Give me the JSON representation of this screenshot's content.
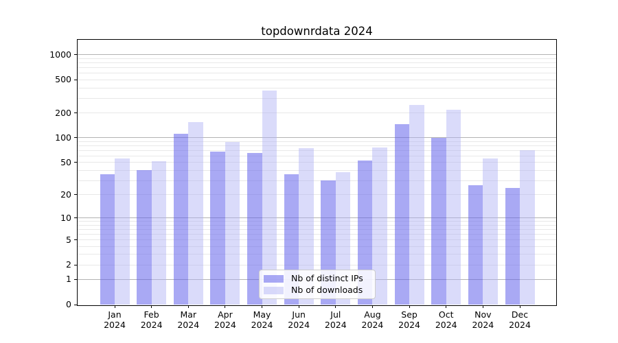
{
  "chart_data": {
    "type": "bar",
    "title": "topdownrdata 2024",
    "year_label": "2024",
    "categories": [
      "Jan",
      "Feb",
      "Mar",
      "Apr",
      "May",
      "Jun",
      "Jul",
      "Aug",
      "Sep",
      "Oct",
      "Nov",
      "Dec"
    ],
    "series": [
      {
        "name": "Nb of distinct IPs",
        "color": "rgba(99,99,235,0.55)",
        "values": [
          36,
          40,
          112,
          68,
          65,
          36,
          30,
          53,
          146,
          100,
          26,
          24
        ]
      },
      {
        "name": "Nb of downloads",
        "color": "rgba(174,176,244,0.45)",
        "values": [
          56,
          52,
          154,
          88,
          370,
          75,
          38,
          76,
          250,
          220,
          56,
          71
        ]
      }
    ],
    "xlabel": "",
    "ylabel": "",
    "y_scale": "log10(1+x)",
    "ylim": [
      0,
      1520
    ],
    "y_ticks": [
      0,
      1,
      2,
      5,
      10,
      20,
      50,
      100,
      200,
      500,
      1000
    ],
    "y_gridlines_major": [
      1,
      10,
      100,
      1000
    ],
    "y_gridlines_minor": [
      2,
      3,
      4,
      5,
      6,
      7,
      8,
      9,
      20,
      30,
      40,
      50,
      60,
      70,
      80,
      90,
      200,
      300,
      400,
      500,
      600,
      700,
      800,
      900
    ],
    "grid": true,
    "legend_position": "lower-center",
    "colors": {
      "grid_major": "#b2b2b2",
      "grid_minor": "#e8e8e8",
      "axis": "#000000",
      "text": "#000000",
      "legend_border": "#cccccc",
      "background": "#ffffff"
    }
  }
}
